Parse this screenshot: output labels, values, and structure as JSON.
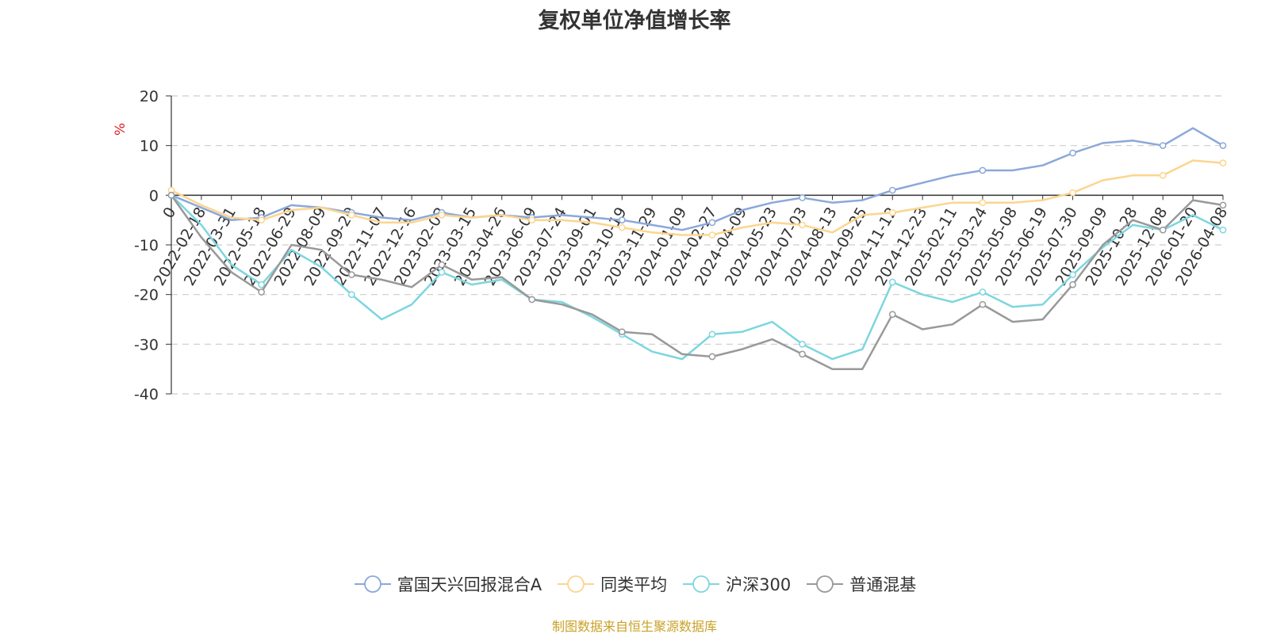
{
  "chart_data": {
    "type": "line",
    "title": "复权单位净值增长率",
    "ylabel": "%",
    "xlabel": "",
    "ylim": [
      -40,
      20
    ],
    "yticks": [
      20,
      10,
      0,
      -10,
      -20,
      -30,
      -40
    ],
    "grid": true,
    "legend_position": "bottom",
    "x": [
      "0",
      "2022-02-18",
      "2022-03-31",
      "2022-05-18",
      "2022-06-29",
      "2022-08-09",
      "2022-09-20",
      "2022-11-07",
      "2022-12-16",
      "2023-02-02",
      "2023-03-15",
      "2023-04-26",
      "2023-06-09",
      "2023-07-24",
      "2023-09-01",
      "2023-10-19",
      "2023-11-29",
      "2024-01-09",
      "2024-02-27",
      "2024-04-09",
      "2024-05-23",
      "2024-07-03",
      "2024-08-13",
      "2024-09-25",
      "2024-11-12",
      "2024-12-23",
      "2025-02-11",
      "2025-03-24",
      "2025-05-08",
      "2025-06-19",
      "2025-07-30",
      "2025-09-09",
      "2025-10-28",
      "2025-12-08",
      "2026-01-20",
      "2026-04-08"
    ],
    "series": [
      {
        "name": "富国天兴回报混合A",
        "color": "#8ba8da",
        "values": [
          0,
          -2.5,
          -5,
          -4.5,
          -2,
          -2.5,
          -3.5,
          -4.5,
          -5,
          -3.5,
          -4.5,
          -4,
          -4.5,
          -4,
          -4.5,
          -5,
          -6,
          -7,
          -5.5,
          -3,
          -1.5,
          -0.5,
          -1.5,
          -1,
          1,
          2.5,
          4,
          5,
          5,
          6,
          8.5,
          10.5,
          11,
          10,
          13.5,
          10
        ]
      },
      {
        "name": "同类平均",
        "color": "#fcd58f",
        "values": [
          1,
          -2,
          -4.5,
          -5,
          -3,
          -2.5,
          -4,
          -5.5,
          -5.5,
          -4,
          -4.5,
          -4,
          -5,
          -5,
          -5.5,
          -6.5,
          -7.5,
          -8,
          -8,
          -6.5,
          -5.5,
          -6,
          -7.5,
          -4,
          -3.5,
          -2.5,
          -1.5,
          -1.5,
          -1.5,
          -1,
          0.5,
          3,
          4,
          4,
          7,
          6.5
        ]
      },
      {
        "name": "沪深300",
        "color": "#7dd6df",
        "values": [
          0,
          -6,
          -14,
          -18,
          -11,
          -14.5,
          -20,
          -25,
          -22,
          -15.5,
          -18,
          -17,
          -21,
          -21.5,
          -24.5,
          -28,
          -31.5,
          -33,
          -28,
          -27.5,
          -25.5,
          -30,
          -33,
          -31,
          -17.5,
          -20,
          -21.5,
          -19.5,
          -22.5,
          -22,
          -16,
          -10.5,
          -6,
          -7,
          -4,
          -7
        ]
      },
      {
        "name": "普通混基",
        "color": "#999999",
        "values": [
          0,
          -8.5,
          -15.5,
          -19.5,
          -10,
          -11,
          -16,
          -17,
          -18.5,
          -14,
          -17,
          -16.5,
          -21,
          -22,
          -24,
          -27.5,
          -28,
          -32,
          -32.5,
          -31,
          -29,
          -32,
          -35,
          -35,
          -24,
          -27,
          -26,
          -22,
          -25.5,
          -25,
          -18,
          -10,
          -5,
          -7,
          -1,
          -2
        ]
      }
    ]
  },
  "legend": {
    "items": [
      "富国天兴回报混合A",
      "同类平均",
      "沪深300",
      "普通混基"
    ]
  },
  "source_note": "制图数据来自恒生聚源数据库",
  "colors": {
    "title": "#333333",
    "axis": "#333333",
    "grid": "#cccccc",
    "unit_label": "#e02020",
    "source_note": "#c9a227"
  }
}
